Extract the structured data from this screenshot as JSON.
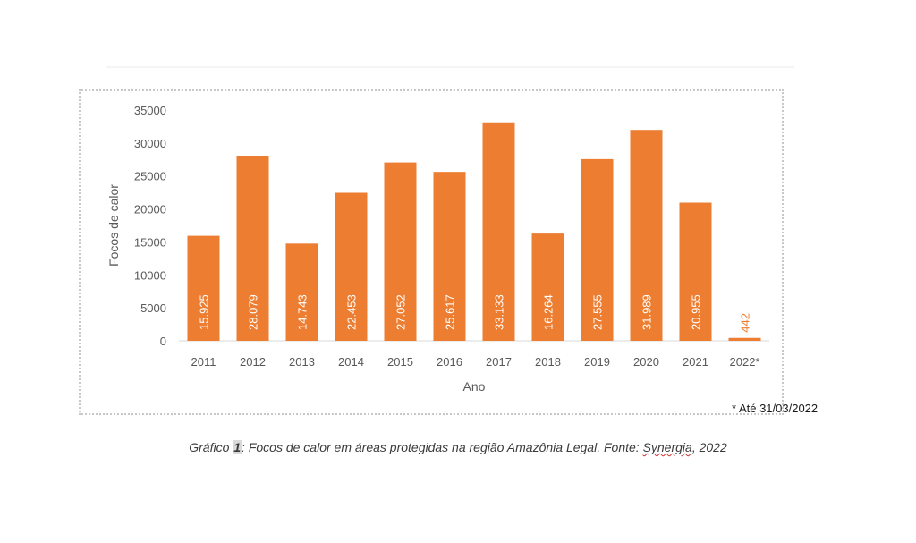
{
  "chart_data": {
    "type": "bar",
    "categories": [
      "2011",
      "2012",
      "2013",
      "2014",
      "2015",
      "2016",
      "2017",
      "2018",
      "2019",
      "2020",
      "2021",
      "2022*"
    ],
    "values": [
      15925,
      28079,
      14743,
      22453,
      27052,
      25617,
      33133,
      16264,
      27555,
      31989,
      20955,
      442
    ],
    "data_labels": [
      "15.925",
      "28.079",
      "14.743",
      "22.453",
      "27.052",
      "25.617",
      "33.133",
      "16.264",
      "27.555",
      "31.989",
      "20.955",
      "442"
    ],
    "yticks": [
      0,
      5000,
      10000,
      15000,
      20000,
      25000,
      30000,
      35000
    ],
    "ylim": [
      0,
      35000
    ],
    "xlabel": "Ano",
    "ylabel": "Focos de calor",
    "bar_color": "#ED7D31",
    "grid": false
  },
  "footnote": "* Até 31/03/2022",
  "caption": {
    "prefix": "Gráfico ",
    "number": "1",
    "middle": ": Focos de calor em áreas protegidas na região Amazônia Legal. Fonte: ",
    "source": "Synergia",
    "suffix": ", 2022"
  }
}
